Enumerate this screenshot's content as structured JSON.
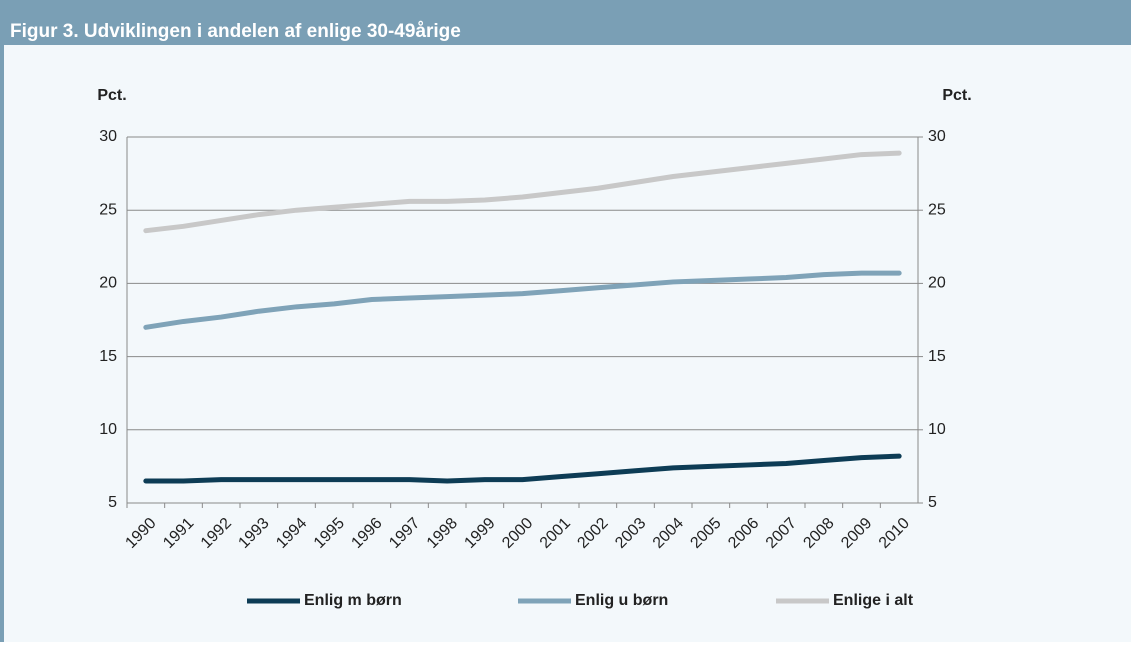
{
  "chart_data": {
    "type": "line",
    "title": "Figur 3. Udviklingen i andelen af enlige 30-49årige",
    "y_label": "Pct.",
    "y2_label": "Pct.",
    "categories": [
      "1990",
      "1991",
      "1992",
      "1993",
      "1994",
      "1995",
      "1996",
      "1997",
      "1998",
      "1999",
      "2000",
      "2001",
      "2002",
      "2003",
      "2004",
      "2005",
      "2006",
      "2007",
      "2008",
      "2009",
      "2010"
    ],
    "series": [
      {
        "name": "Enlig m børn",
        "color": "#0d3c55",
        "values": [
          6.5,
          6.5,
          6.6,
          6.6,
          6.6,
          6.6,
          6.6,
          6.6,
          6.5,
          6.6,
          6.6,
          6.8,
          7.0,
          7.2,
          7.4,
          7.5,
          7.6,
          7.7,
          7.9,
          8.1,
          8.2
        ]
      },
      {
        "name": "Enlig u børn",
        "color": "#7fa3b8",
        "values": [
          17.0,
          17.4,
          17.7,
          18.1,
          18.4,
          18.6,
          18.9,
          19.0,
          19.1,
          19.2,
          19.3,
          19.5,
          19.7,
          19.9,
          20.1,
          20.2,
          20.3,
          20.4,
          20.6,
          20.7,
          20.7
        ]
      },
      {
        "name": "Enlige i alt",
        "color": "#c8c8c8",
        "values": [
          23.6,
          23.9,
          24.3,
          24.7,
          25.0,
          25.2,
          25.4,
          25.6,
          25.6,
          25.7,
          25.9,
          26.2,
          26.5,
          26.9,
          27.3,
          27.6,
          27.9,
          28.2,
          28.5,
          28.8,
          28.9
        ]
      }
    ],
    "ylim": [
      5,
      30
    ],
    "yticks": [
      5,
      10,
      15,
      20,
      25,
      30
    ],
    "y2lim": [
      5,
      30
    ],
    "y2ticks": [
      5,
      10,
      15,
      20,
      25,
      30
    ],
    "grid": true,
    "legend": "bottom"
  }
}
